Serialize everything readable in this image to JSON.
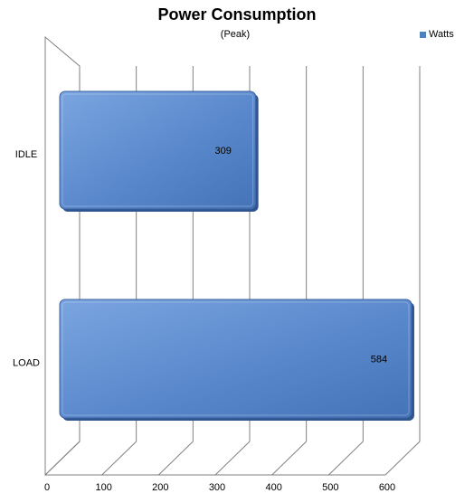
{
  "chart_data": {
    "type": "bar",
    "orientation": "horizontal",
    "title": "Power Consumption",
    "subtitle": "(Peak)",
    "categories": [
      "IDLE",
      "LOAD"
    ],
    "series": [
      {
        "name": "Watts",
        "values": [
          309,
          584
        ],
        "color": "#4f81bd"
      }
    ],
    "xlim": [
      0,
      600
    ],
    "x_ticks": [
      "0",
      "100",
      "200",
      "300",
      "400",
      "500",
      "600"
    ],
    "grid": true,
    "legend_position": "top-right"
  }
}
